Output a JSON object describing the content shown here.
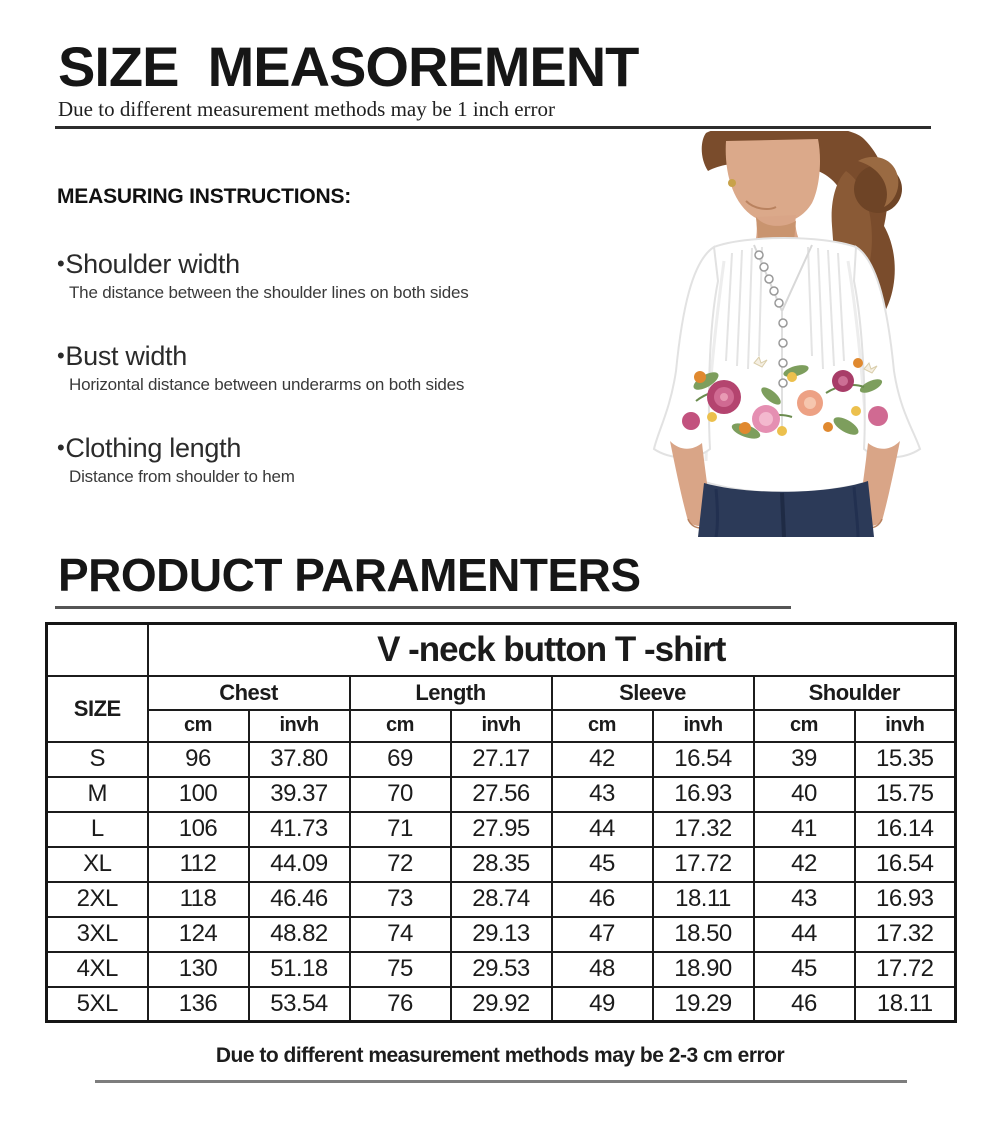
{
  "page": {
    "title": "SIZE  MEASOREMENT",
    "subtitle": "Due to different measurement methods may be 1 inch error",
    "footer_note": "Due to different measurement methods may be 2-3 cm error"
  },
  "instructions": {
    "heading": "MEASURING INSTRUCTIONS:",
    "bullet": "•",
    "items": [
      {
        "label": "Shoulder width",
        "description": "The distance between the shoulder lines on both sides"
      },
      {
        "label": "Bust width",
        "description": "Horizontal distance between underarms on both sides"
      },
      {
        "label": "Clothing length",
        "description": "Distance from shoulder to hem"
      }
    ]
  },
  "product_image": {
    "description": "Model wearing white v-neck button blouse with floral waist print and dark jeans"
  },
  "section2": {
    "heading": "PRODUCT PARAMENTERS"
  },
  "size_table": {
    "title": "V -neck button T -shirt",
    "size_header": "SIZE",
    "groups": [
      "Chest",
      "Length",
      "Sleeve",
      "Shoulder"
    ],
    "unit_headers": [
      "cm",
      "invh"
    ],
    "rows": [
      {
        "size": "S",
        "values": [
          "96",
          "37.80",
          "69",
          "27.17",
          "42",
          "16.54",
          "39",
          "15.35"
        ]
      },
      {
        "size": "M",
        "values": [
          "100",
          "39.37",
          "70",
          "27.56",
          "43",
          "16.93",
          "40",
          "15.75"
        ]
      },
      {
        "size": "L",
        "values": [
          "106",
          "41.73",
          "71",
          "27.95",
          "44",
          "17.32",
          "41",
          "16.14"
        ]
      },
      {
        "size": "XL",
        "values": [
          "112",
          "44.09",
          "72",
          "28.35",
          "45",
          "17.72",
          "42",
          "16.54"
        ]
      },
      {
        "size": "2XL",
        "values": [
          "118",
          "46.46",
          "73",
          "28.74",
          "46",
          "18.11",
          "43",
          "16.93"
        ]
      },
      {
        "size": "3XL",
        "values": [
          "124",
          "48.82",
          "74",
          "29.13",
          "47",
          "18.50",
          "44",
          "17.32"
        ]
      },
      {
        "size": "4XL",
        "values": [
          "130",
          "51.18",
          "75",
          "29.53",
          "48",
          "18.90",
          "45",
          "17.72"
        ]
      },
      {
        "size": "5XL",
        "values": [
          "136",
          "53.54",
          "76",
          "29.92",
          "49",
          "19.29",
          "46",
          "18.11"
        ]
      }
    ]
  },
  "colors": {
    "text": "#1a1a1a",
    "table_border": "#1c1c1c",
    "top_rule": "#2d2d2d",
    "section_rule": "#555555",
    "bottom_rule": "#7d7d7d",
    "floral_magenta": "#b4446f",
    "floral_pink": "#e58fb2",
    "floral_orange": "#e0892f",
    "floral_yellow": "#ecc04d",
    "leaf_green": "#7d9e5d",
    "jeans_navy": "#2c3a58",
    "hair_brown": "#7a4c2c",
    "skin": "#d9a587"
  }
}
